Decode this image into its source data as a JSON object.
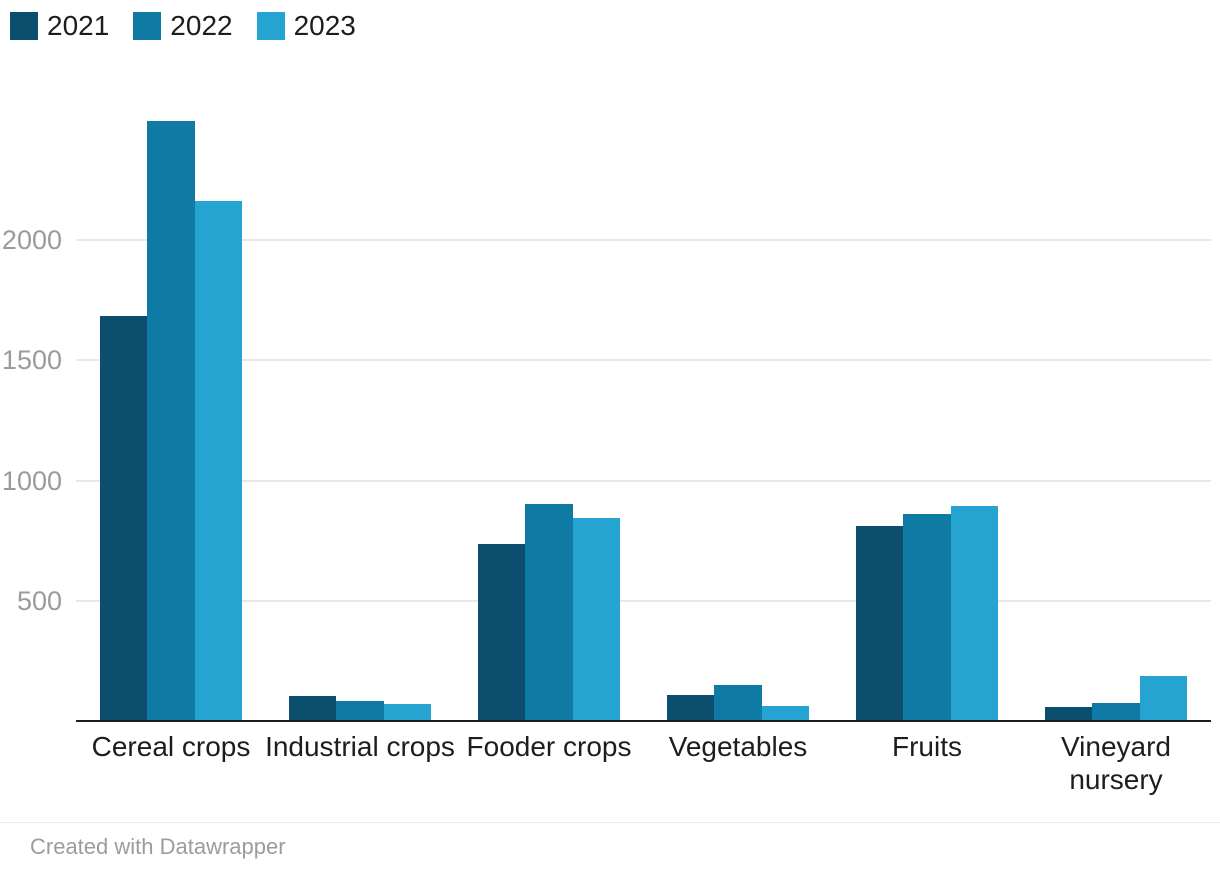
{
  "footer": {
    "text": "Created with Datawrapper"
  },
  "colors": {
    "background": "#ffffff",
    "grid": "#e8e8e8",
    "axis": "#1d1d1d",
    "tick_label": "#9b9b9b",
    "category_label": "#1d1d1d",
    "legend_label": "#1d1d1d",
    "footer": "#9c9c9c",
    "series_2021": "#0b4e6e",
    "series_2022": "#0f7aa4",
    "series_2023": "#25a3d1"
  },
  "chart_data": {
    "type": "bar",
    "title": "",
    "xlabel": "",
    "ylabel": "",
    "categories": [
      "Cereal crops",
      "Industrial crops",
      "Fooder crops",
      "Vegetables",
      "Fruits",
      "Vineyard\nnursery"
    ],
    "series": [
      {
        "name": "2021",
        "color": "#0b4e6e",
        "values": [
          1680,
          100,
          730,
          105,
          805,
          55
        ]
      },
      {
        "name": "2022",
        "color": "#0f7aa4",
        "values": [
          2490,
          80,
          900,
          145,
          855,
          70
        ]
      },
      {
        "name": "2023",
        "color": "#25a3d1",
        "values": [
          2160,
          65,
          840,
          60,
          890,
          185
        ]
      }
    ],
    "yticks": [
      500,
      1000,
      1500,
      2000
    ],
    "ylim": [
      0,
      2500
    ],
    "grid": true,
    "legend_position": "top-left"
  }
}
